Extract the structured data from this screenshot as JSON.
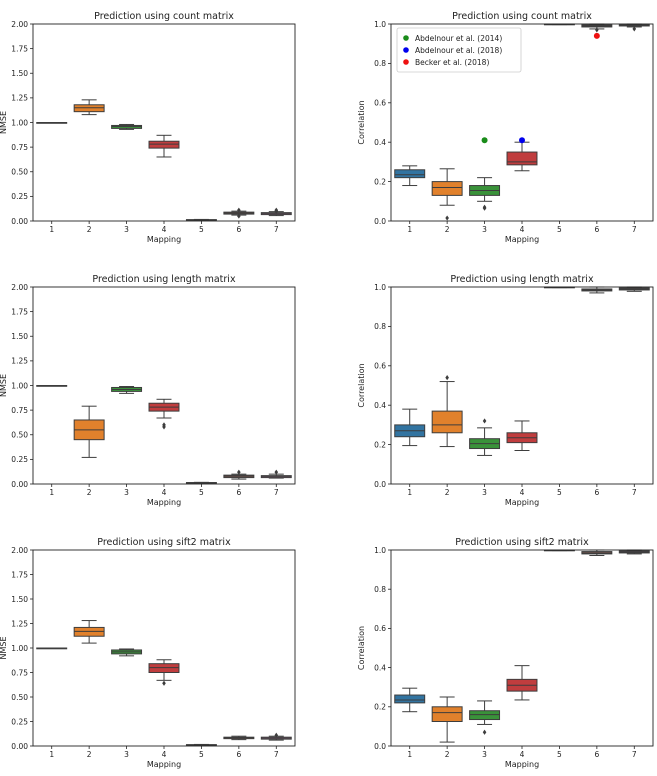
{
  "colors": {
    "blue": "#3274a1",
    "orange": "#e1812c",
    "green": "#3a923a",
    "red": "#c03d3e",
    "brown": "#9372b2",
    "pink": "#3a923a"
  },
  "chart_data": [
    {
      "type": "box",
      "title": "Prediction using count matrix",
      "xlabel": "Mapping",
      "ylabel": "NMSE",
      "categories": [
        "1",
        "2",
        "3",
        "4",
        "5",
        "6",
        "7"
      ],
      "ylim": [
        0,
        2.0
      ],
      "yticks": [
        "0.00",
        "0.25",
        "0.50",
        "0.75",
        "1.00",
        "1.25",
        "1.50",
        "1.75",
        "2.00"
      ],
      "boxes": [
        {
          "q1": 1.0,
          "med": 1.0,
          "q3": 1.0,
          "lo": 1.0,
          "hi": 1.0,
          "color": "#3274a1",
          "outliers": []
        },
        {
          "q1": 1.11,
          "med": 1.15,
          "q3": 1.18,
          "lo": 1.08,
          "hi": 1.23,
          "color": "#e1812c",
          "outliers": []
        },
        {
          "q1": 0.94,
          "med": 0.96,
          "q3": 0.97,
          "lo": 0.93,
          "hi": 0.98,
          "color": "#3a923a",
          "outliers": []
        },
        {
          "q1": 0.74,
          "med": 0.78,
          "q3": 0.81,
          "lo": 0.65,
          "hi": 0.87,
          "color": "#c03d3e",
          "outliers": []
        },
        {
          "q1": 0.01,
          "med": 0.012,
          "q3": 0.014,
          "lo": 0.008,
          "hi": 0.016,
          "color": "#9372b2",
          "outliers": []
        },
        {
          "q1": 0.07,
          "med": 0.08,
          "q3": 0.09,
          "lo": 0.06,
          "hi": 0.1,
          "color": "#845b53",
          "outliers": [
            0.11,
            0.05
          ]
        },
        {
          "q1": 0.065,
          "med": 0.075,
          "q3": 0.085,
          "lo": 0.055,
          "hi": 0.095,
          "color": "#d684bd",
          "outliers": [
            0.11,
            0.1
          ]
        }
      ]
    },
    {
      "type": "box",
      "title": "Prediction using count matrix",
      "xlabel": "Mapping",
      "ylabel": "Correlation",
      "categories": [
        "1",
        "2",
        "3",
        "4",
        "5",
        "6",
        "7"
      ],
      "ylim": [
        0,
        1.0
      ],
      "yticks": [
        "0.0",
        "0.2",
        "0.4",
        "0.6",
        "0.8",
        "1.0"
      ],
      "legend": [
        {
          "label": "Abdelnour et al. (2014)",
          "color": "#1a8c1a"
        },
        {
          "label": "Abdelnour et al. (2018)",
          "color": "#0000ee"
        },
        {
          "label": "Becker et al. (2018)",
          "color": "#ee1111"
        }
      ],
      "boxes": [
        {
          "q1": 0.22,
          "med": 0.235,
          "q3": 0.26,
          "lo": 0.18,
          "hi": 0.28,
          "color": "#3274a1",
          "outliers": []
        },
        {
          "q1": 0.13,
          "med": 0.17,
          "q3": 0.2,
          "lo": 0.08,
          "hi": 0.265,
          "color": "#e1812c",
          "outliers": [
            0.015
          ]
        },
        {
          "q1": 0.13,
          "med": 0.155,
          "q3": 0.18,
          "lo": 0.1,
          "hi": 0.22,
          "color": "#3a923a",
          "outliers": [
            0.07,
            0.065
          ]
        },
        {
          "q1": 0.285,
          "med": 0.3,
          "q3": 0.35,
          "lo": 0.255,
          "hi": 0.4,
          "color": "#c03d3e",
          "outliers": []
        },
        {
          "q1": 0.998,
          "med": 0.999,
          "q3": 1.0,
          "lo": 0.997,
          "hi": 1.0,
          "color": "#9372b2",
          "outliers": []
        },
        {
          "q1": 0.985,
          "med": 0.99,
          "q3": 0.995,
          "lo": 0.975,
          "hi": 1.0,
          "color": "#845b53",
          "outliers": [
            0.97
          ]
        },
        {
          "q1": 0.99,
          "med": 0.993,
          "q3": 0.996,
          "lo": 0.985,
          "hi": 1.0,
          "color": "#d684bd",
          "outliers": [
            0.975
          ]
        }
      ],
      "refs": [
        {
          "x": "3",
          "y": 0.41,
          "color": "#1a8c1a"
        },
        {
          "x": "4",
          "y": 0.41,
          "color": "#0000ee"
        },
        {
          "x": "6",
          "y": 0.94,
          "color": "#ee1111"
        }
      ]
    },
    {
      "type": "box",
      "title": "Prediction using length matrix",
      "xlabel": "Mapping",
      "ylabel": "NMSE",
      "categories": [
        "1",
        "2",
        "3",
        "4",
        "5",
        "6",
        "7"
      ],
      "ylim": [
        0,
        2.0
      ],
      "yticks": [
        "0.00",
        "0.25",
        "0.50",
        "0.75",
        "1.00",
        "1.25",
        "1.50",
        "1.75",
        "2.00"
      ],
      "boxes": [
        {
          "q1": 1.0,
          "med": 1.0,
          "q3": 1.0,
          "lo": 1.0,
          "hi": 1.0,
          "color": "#3274a1",
          "outliers": []
        },
        {
          "q1": 0.45,
          "med": 0.55,
          "q3": 0.65,
          "lo": 0.27,
          "hi": 0.79,
          "color": "#e1812c",
          "outliers": []
        },
        {
          "q1": 0.94,
          "med": 0.96,
          "q3": 0.98,
          "lo": 0.92,
          "hi": 0.99,
          "color": "#3a923a",
          "outliers": []
        },
        {
          "q1": 0.74,
          "med": 0.78,
          "q3": 0.82,
          "lo": 0.67,
          "hi": 0.86,
          "color": "#c03d3e",
          "outliers": [
            0.6,
            0.58
          ]
        },
        {
          "q1": 0.01,
          "med": 0.012,
          "q3": 0.015,
          "lo": 0.008,
          "hi": 0.017,
          "color": "#9372b2",
          "outliers": []
        },
        {
          "q1": 0.065,
          "med": 0.08,
          "q3": 0.09,
          "lo": 0.05,
          "hi": 0.1,
          "color": "#845b53",
          "outliers": [
            0.12
          ]
        },
        {
          "q1": 0.065,
          "med": 0.075,
          "q3": 0.085,
          "lo": 0.06,
          "hi": 0.1,
          "color": "#d684bd",
          "outliers": [
            0.12
          ]
        }
      ]
    },
    {
      "type": "box",
      "title": "Prediction using length matrix",
      "xlabel": "Mapping",
      "ylabel": "Correlation",
      "categories": [
        "1",
        "2",
        "3",
        "4",
        "5",
        "6",
        "7"
      ],
      "ylim": [
        0,
        1.0
      ],
      "yticks": [
        "0.0",
        "0.2",
        "0.4",
        "0.6",
        "0.8",
        "1.0"
      ],
      "boxes": [
        {
          "q1": 0.24,
          "med": 0.27,
          "q3": 0.3,
          "lo": 0.195,
          "hi": 0.38,
          "color": "#3274a1",
          "outliers": []
        },
        {
          "q1": 0.26,
          "med": 0.3,
          "q3": 0.37,
          "lo": 0.19,
          "hi": 0.52,
          "color": "#e1812c",
          "outliers": [
            0.54
          ]
        },
        {
          "q1": 0.18,
          "med": 0.205,
          "q3": 0.23,
          "lo": 0.145,
          "hi": 0.285,
          "color": "#3a923a",
          "outliers": [
            0.32
          ]
        },
        {
          "q1": 0.21,
          "med": 0.235,
          "q3": 0.26,
          "lo": 0.17,
          "hi": 0.32,
          "color": "#c03d3e",
          "outliers": []
        },
        {
          "q1": 0.998,
          "med": 0.999,
          "q3": 1.0,
          "lo": 0.997,
          "hi": 1.0,
          "color": "#9372b2",
          "outliers": []
        },
        {
          "q1": 0.98,
          "med": 0.985,
          "q3": 0.99,
          "lo": 0.97,
          "hi": 1.0,
          "color": "#845b53",
          "outliers": []
        },
        {
          "q1": 0.985,
          "med": 0.99,
          "q3": 0.995,
          "lo": 0.978,
          "hi": 1.0,
          "color": "#d684bd",
          "outliers": []
        }
      ]
    },
    {
      "type": "box",
      "title": "Prediction using sift2 matrix",
      "xlabel": "Mapping",
      "ylabel": "NMSE",
      "categories": [
        "1",
        "2",
        "3",
        "4",
        "5",
        "6",
        "7"
      ],
      "ylim": [
        0,
        2.0
      ],
      "yticks": [
        "0.00",
        "0.25",
        "0.50",
        "0.75",
        "1.00",
        "1.25",
        "1.50",
        "1.75",
        "2.00"
      ],
      "boxes": [
        {
          "q1": 1.0,
          "med": 1.0,
          "q3": 1.0,
          "lo": 1.0,
          "hi": 1.0,
          "color": "#3274a1",
          "outliers": []
        },
        {
          "q1": 1.12,
          "med": 1.17,
          "q3": 1.21,
          "lo": 1.05,
          "hi": 1.28,
          "color": "#e1812c",
          "outliers": []
        },
        {
          "q1": 0.94,
          "med": 0.96,
          "q3": 0.98,
          "lo": 0.92,
          "hi": 0.99,
          "color": "#3a923a",
          "outliers": []
        },
        {
          "q1": 0.75,
          "med": 0.8,
          "q3": 0.84,
          "lo": 0.67,
          "hi": 0.88,
          "color": "#c03d3e",
          "outliers": [
            0.64
          ]
        },
        {
          "q1": 0.01,
          "med": 0.012,
          "q3": 0.014,
          "lo": 0.008,
          "hi": 0.016,
          "color": "#9372b2",
          "outliers": []
        },
        {
          "q1": 0.075,
          "med": 0.085,
          "q3": 0.09,
          "lo": 0.065,
          "hi": 0.1,
          "color": "#845b53",
          "outliers": []
        },
        {
          "q1": 0.07,
          "med": 0.08,
          "q3": 0.09,
          "lo": 0.06,
          "hi": 0.1,
          "color": "#d684bd",
          "outliers": [
            0.11
          ]
        }
      ]
    },
    {
      "type": "box",
      "title": "Prediction using sift2 matrix",
      "xlabel": "Mapping",
      "ylabel": "Correlation",
      "categories": [
        "1",
        "2",
        "3",
        "4",
        "5",
        "6",
        "7"
      ],
      "ylim": [
        0,
        1.0
      ],
      "yticks": [
        "0.0",
        "0.2",
        "0.4",
        "0.6",
        "0.8",
        "1.0"
      ],
      "boxes": [
        {
          "q1": 0.22,
          "med": 0.235,
          "q3": 0.26,
          "lo": 0.175,
          "hi": 0.295,
          "color": "#3274a1",
          "outliers": []
        },
        {
          "q1": 0.125,
          "med": 0.17,
          "q3": 0.2,
          "lo": 0.02,
          "hi": 0.25,
          "color": "#e1812c",
          "outliers": []
        },
        {
          "q1": 0.135,
          "med": 0.16,
          "q3": 0.18,
          "lo": 0.11,
          "hi": 0.23,
          "color": "#3a923a",
          "outliers": [
            0.07
          ]
        },
        {
          "q1": 0.28,
          "med": 0.31,
          "q3": 0.34,
          "lo": 0.235,
          "hi": 0.41,
          "color": "#c03d3e",
          "outliers": []
        },
        {
          "q1": 0.998,
          "med": 0.999,
          "q3": 1.0,
          "lo": 0.997,
          "hi": 1.0,
          "color": "#9372b2",
          "outliers": []
        },
        {
          "q1": 0.98,
          "med": 0.985,
          "q3": 0.992,
          "lo": 0.972,
          "hi": 1.0,
          "color": "#845b53",
          "outliers": []
        },
        {
          "q1": 0.985,
          "med": 0.99,
          "q3": 0.995,
          "lo": 0.98,
          "hi": 1.0,
          "color": "#d684bd",
          "outliers": []
        }
      ]
    }
  ]
}
